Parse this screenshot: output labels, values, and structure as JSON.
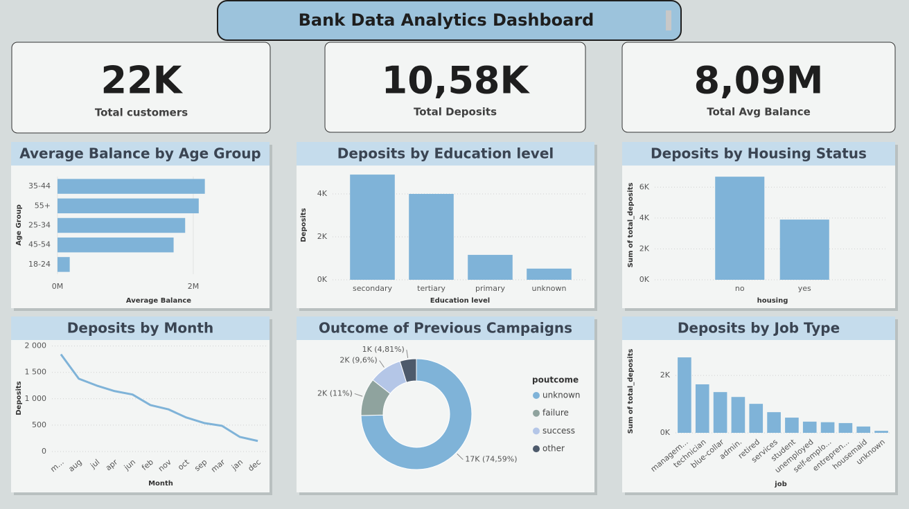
{
  "header": {
    "title": "Bank Data Analytics Dashboard"
  },
  "kpis": [
    {
      "value": "22K",
      "label": "Total customers"
    },
    {
      "value": "10,58K",
      "label": "Total Deposits"
    },
    {
      "value": "8,09M",
      "label": "Total Avg Balance"
    }
  ],
  "chart_data": [
    {
      "type": "bar",
      "orientation": "horizontal",
      "title": "Average Balance by Age Group",
      "categories": [
        "35-44",
        "55+",
        "25-34",
        "45-54",
        "18-24"
      ],
      "values": [
        2170000,
        2080000,
        1880000,
        1710000,
        180000
      ],
      "color": "#7fb3d8",
      "x_label": "Average Balance",
      "y_label": "Age Group",
      "xlim": [
        0,
        2500000
      ],
      "xticks": [
        {
          "value": 0,
          "label": "0M"
        },
        {
          "value": 2000000,
          "label": "2M"
        }
      ],
      "grid": true
    },
    {
      "type": "bar",
      "title": "Deposits by Education level",
      "categories": [
        "secondary",
        "tertiary",
        "primary",
        "unknown"
      ],
      "values": [
        4900,
        4000,
        1160,
        520
      ],
      "color": "#7fb3d8",
      "x_label": "Education level",
      "y_label": "Deposits",
      "ylim": [
        0,
        5000
      ],
      "yticks": [
        {
          "value": 0,
          "label": "0K"
        },
        {
          "value": 2000,
          "label": "2K"
        },
        {
          "value": 4000,
          "label": "4K"
        }
      ],
      "grid": true
    },
    {
      "type": "bar",
      "title": "Deposits by Housing Status",
      "categories": [
        "no",
        "yes"
      ],
      "values": [
        6680,
        3900
      ],
      "color": "#7fb3d8",
      "x_label": "housing",
      "y_label": "Sum of total_deposits",
      "ylim": [
        0,
        7000
      ],
      "yticks": [
        {
          "value": 0,
          "label": "0K"
        },
        {
          "value": 2000,
          "label": "2K"
        },
        {
          "value": 4000,
          "label": "4K"
        },
        {
          "value": 6000,
          "label": "6K"
        }
      ],
      "grid": true
    },
    {
      "type": "line",
      "title": "Deposits by Month",
      "categories": [
        "m...",
        "aug",
        "jul",
        "apr",
        "jun",
        "feb",
        "nov",
        "oct",
        "sep",
        "mar",
        "jan",
        "dec"
      ],
      "values": [
        1842,
        1380,
        1250,
        1145,
        1080,
        880,
        800,
        645,
        540,
        487,
        276,
        200
      ],
      "color": "#7fb3d8",
      "x_label": "Month",
      "y_label": "Deposits",
      "ylim": [
        0,
        2100
      ],
      "yticks": [
        0,
        500,
        {
          "value": 1000,
          "label": "1 000"
        },
        {
          "value": 1500,
          "label": "1 500"
        },
        {
          "value": 2000,
          "label": "2 000"
        }
      ],
      "grid": true
    },
    {
      "type": "donut",
      "title": "Outcome of Previous Campaigns",
      "legend_title": "poutcome",
      "categories": [
        "unknown",
        "failure",
        "success",
        "other"
      ],
      "values": [
        74.59,
        11,
        9.6,
        4.81
      ],
      "value_labels": [
        "17K (74,59%)",
        "2K (11%)",
        "2K (9,6%)",
        "1K (4,81%)"
      ],
      "colors": [
        "#7fb3d8",
        "#8fa39e",
        "#b4c6e7",
        "#4d5a6b"
      ],
      "legend": "right"
    },
    {
      "type": "bar",
      "title": "Deposits by Job Type",
      "categories": [
        "managem...",
        "technician",
        "blue-collar",
        "admin.",
        "retired",
        "services",
        "student",
        "unemployed",
        "self-emplo...",
        "entrepren...",
        "housemaid",
        "unknown"
      ],
      "values": [
        2630,
        1690,
        1420,
        1250,
        1010,
        720,
        530,
        390,
        370,
        340,
        220,
        70
      ],
      "color": "#7fb3d8",
      "x_label": "job",
      "y_label": "Sum of total_deposits",
      "rotate_labels": true,
      "ylim": [
        0,
        2800
      ],
      "yticks": [
        {
          "value": 0,
          "label": "0K"
        },
        {
          "value": 2000,
          "label": "2K"
        }
      ],
      "grid": true
    }
  ]
}
